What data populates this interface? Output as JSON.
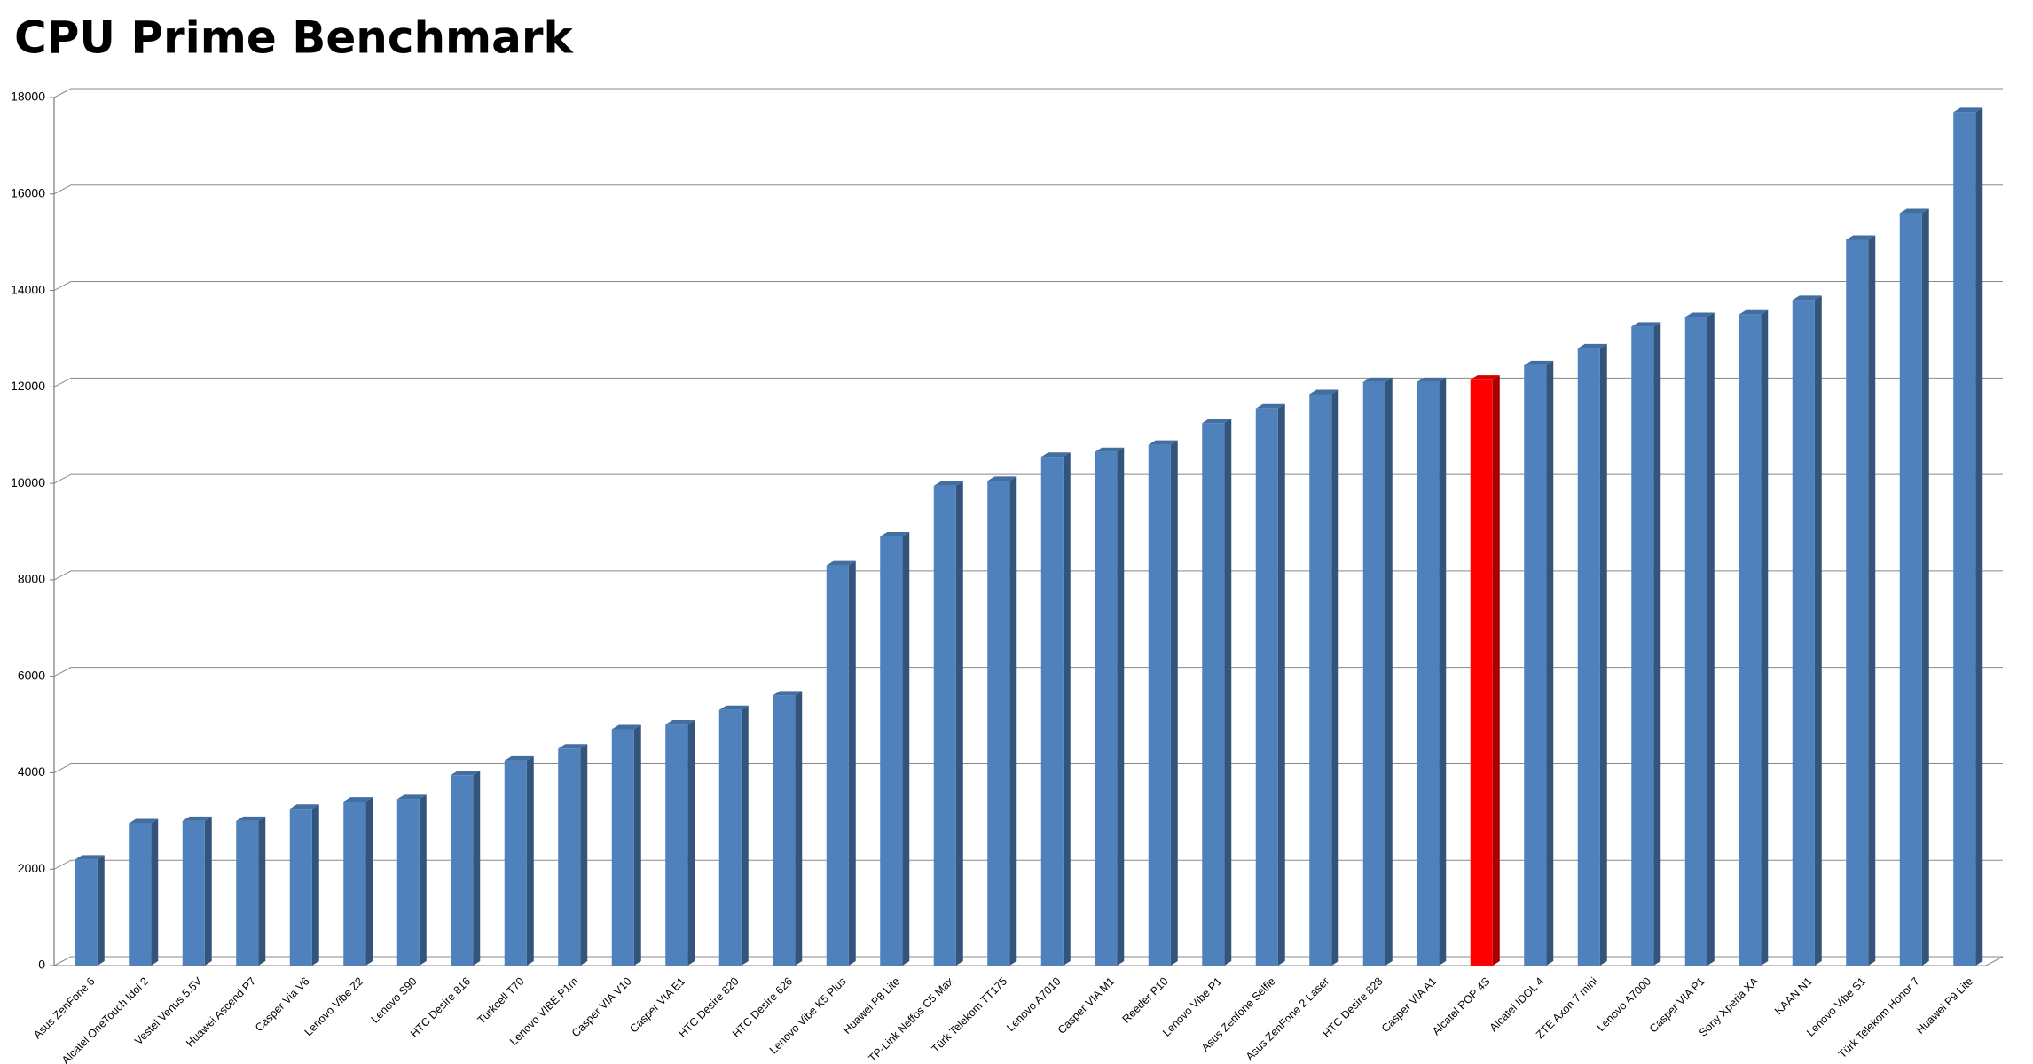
{
  "chart_data": {
    "type": "bar",
    "title": "CPU Prime Benchmark",
    "categories": [
      "Asus ZenFone 6",
      "Alcatel OneTouch Idol 2",
      "Vestel Venus 5.5V",
      "Huawei Ascend P7",
      "Casper Via V6",
      "Lenovo Vibe Z2",
      "Lenovo S90",
      "HTC Desire 816",
      "Turkcell T70",
      "Lenovo VIBE P1m",
      "Casper VIA V10",
      "Casper VIA E1",
      "HTC Desire 820",
      "HTC Desire 626",
      "Lenovo Vibe K5 Plus",
      "Huawei P8 Lite",
      "TP-Link Neffos C5 Max",
      "Türk Telekom TT175",
      "Lenovo A7010",
      "Casper VIA M1",
      "Reeder P10",
      "Lenovo Vibe P1",
      "Asus Zenfone Selfie",
      "Asus ZenFone 2 Laser",
      "HTC Desire 828",
      "Casper VIA A1",
      "Alcatel POP 4S",
      "Alcatel IDOL 4",
      "ZTE Axon 7 mini",
      "Lenovo A7000",
      "Casper VIA P1",
      "Sony Xperia XA",
      "KAAN N1",
      "Lenovo Vibe S1",
      "Türk Telekom Honor 7",
      "Huawei P9 Lite"
    ],
    "values": [
      2200,
      2950,
      3000,
      3000,
      3250,
      3400,
      3450,
      3950,
      4250,
      4500,
      4900,
      5000,
      5300,
      5600,
      8300,
      8900,
      9950,
      10050,
      10550,
      10650,
      10800,
      11250,
      11550,
      11850,
      12100,
      12100,
      12150,
      12450,
      12800,
      13250,
      13450,
      13500,
      13800,
      15050,
      15600,
      17700
    ],
    "colors": [
      "#4f81bd",
      "#4f81bd",
      "#4f81bd",
      "#4f81bd",
      "#4f81bd",
      "#4f81bd",
      "#4f81bd",
      "#4f81bd",
      "#4f81bd",
      "#4f81bd",
      "#4f81bd",
      "#4f81bd",
      "#4f81bd",
      "#4f81bd",
      "#4f81bd",
      "#4f81bd",
      "#4f81bd",
      "#4f81bd",
      "#4f81bd",
      "#4f81bd",
      "#4f81bd",
      "#4f81bd",
      "#4f81bd",
      "#4f81bd",
      "#4f81bd",
      "#4f81bd",
      "#ff0000",
      "#4f81bd",
      "#4f81bd",
      "#4f81bd",
      "#4f81bd",
      "#4f81bd",
      "#4f81bd",
      "#4f81bd",
      "#4f81bd",
      "#4f81bd"
    ],
    "ylim": [
      0,
      18000
    ],
    "yticks": [
      0,
      2000,
      4000,
      6000,
      8000,
      10000,
      12000,
      14000,
      16000,
      18000
    ],
    "grid": true
  }
}
